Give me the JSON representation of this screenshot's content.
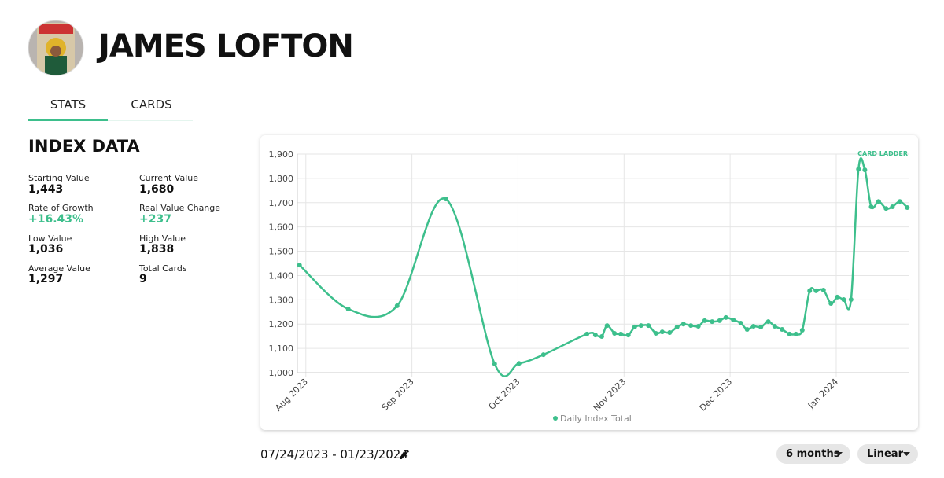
{
  "header": {
    "name": "JAMES LOFTON"
  },
  "tabs": [
    "STATS",
    "CARDS"
  ],
  "index_data": {
    "title": "INDEX DATA",
    "stats": [
      {
        "label": "Starting Value",
        "value": "1,443"
      },
      {
        "label": "Current Value",
        "value": "1,680"
      },
      {
        "label": "Rate of Growth",
        "value": "+16.43%"
      },
      {
        "label": "Real Value Change",
        "value": "+237"
      },
      {
        "label": "Low Value",
        "value": "1,036"
      },
      {
        "label": "High Value",
        "value": "1,838"
      },
      {
        "label": "Average Value",
        "value": "1,297"
      },
      {
        "label": "Total Cards",
        "value": "9"
      }
    ]
  },
  "chart_data": {
    "type": "line",
    "watermark": "CARD LADDER",
    "x": [
      7.94,
      8.4,
      8.86,
      9.32,
      9.78,
      10.01,
      10.24,
      10.65,
      10.73,
      10.79,
      10.84,
      10.91,
      10.97,
      11.04,
      11.1,
      11.16,
      11.23,
      11.3,
      11.36,
      11.43,
      11.5,
      11.56,
      11.63,
      11.7,
      11.76,
      11.83,
      11.9,
      11.96,
      12.03,
      12.1,
      12.16,
      12.22,
      12.29,
      12.36,
      12.42,
      12.49,
      12.56,
      12.62,
      12.68,
      12.75,
      12.81,
      12.88,
      12.95,
      13.01,
      13.07,
      13.14,
      13.21,
      13.27,
      13.33,
      13.4,
      13.47,
      13.53,
      13.6,
      13.67
    ],
    "series": [
      {
        "name": "Daily Index Total",
        "color": "#3dbf8c",
        "values": [
          1443,
          1262,
          1275,
          1715,
          1036,
          1038,
          1074,
          1159,
          1155,
          1149,
          1194,
          1162,
          1159,
          1155,
          1188,
          1194,
          1194,
          1162,
          1168,
          1165,
          1188,
          1200,
          1194,
          1191,
          1214,
          1210,
          1214,
          1227,
          1217,
          1204,
          1178,
          1191,
          1188,
          1210,
          1191,
          1178,
          1159,
          1159,
          1175,
          1337,
          1337,
          1340,
          1285,
          1311,
          1301,
          1301,
          1838,
          1835,
          1683,
          1705,
          1676,
          1683,
          1705,
          1680
        ]
      }
    ],
    "xlim": [
      7.92,
      13.69
    ],
    "xticks": [
      {
        "value": 8,
        "label": "Aug 2023"
      },
      {
        "value": 9,
        "label": "Sep 2023"
      },
      {
        "value": 10,
        "label": "Oct 2023"
      },
      {
        "value": 11,
        "label": "Nov 2023"
      },
      {
        "value": 12,
        "label": "Dec 2023"
      },
      {
        "value": 13,
        "label": "Jan 2024"
      }
    ],
    "ylim": [
      1000,
      1900
    ],
    "yticks": [
      {
        "value": 1000,
        "label": "1,000"
      },
      {
        "value": 1100,
        "label": "1,100"
      },
      {
        "value": 1200,
        "label": "1,200"
      },
      {
        "value": 1300,
        "label": "1,300"
      },
      {
        "value": 1400,
        "label": "1,400"
      },
      {
        "value": 1500,
        "label": "1,500"
      },
      {
        "value": 1600,
        "label": "1,600"
      },
      {
        "value": 1700,
        "label": "1,700"
      },
      {
        "value": 1800,
        "label": "1,800"
      },
      {
        "value": 1900,
        "label": "1,900"
      }
    ],
    "grid": true
  },
  "controls": {
    "date_range": "07/24/2023 - 01/23/2024",
    "period": "6 months",
    "scale": "Linear"
  }
}
